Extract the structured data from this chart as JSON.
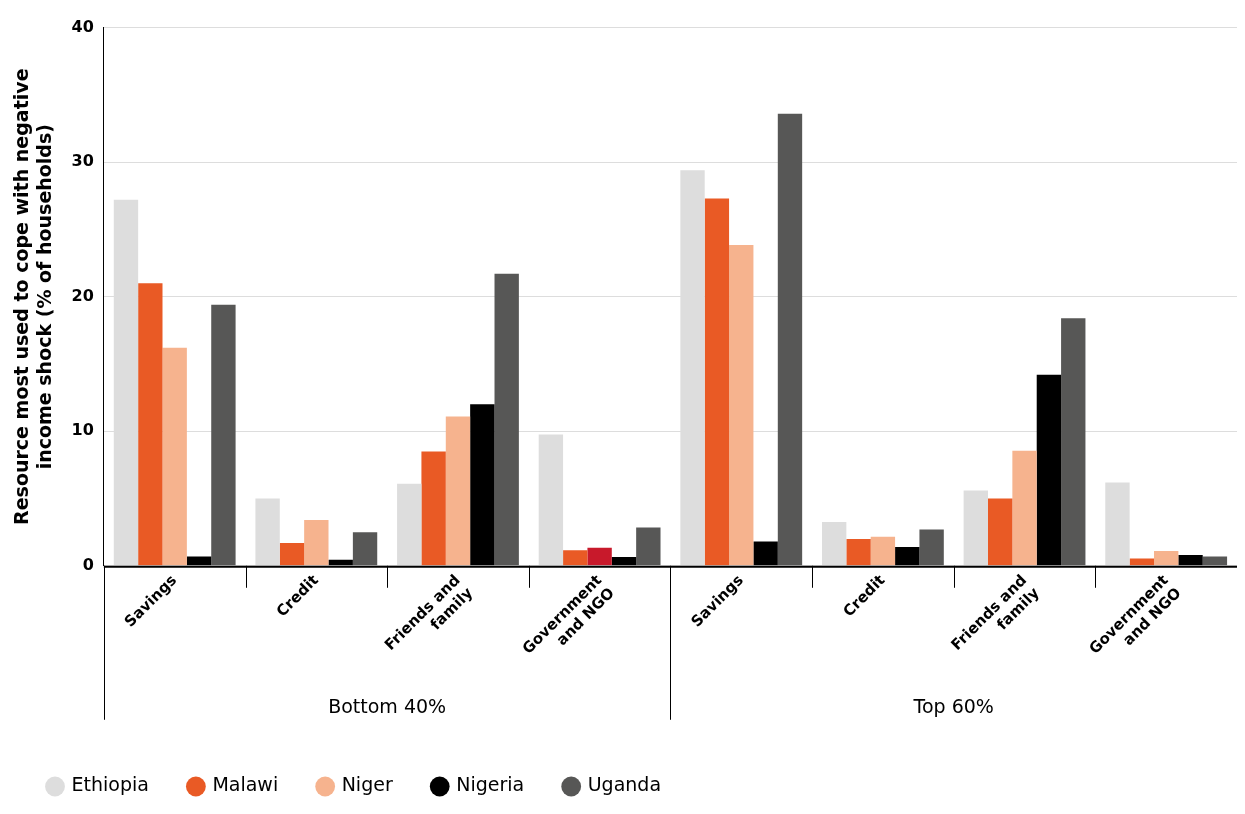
{
  "chart_data": {
    "type": "bar",
    "ylabel": "Resource most used to cope with negative income shock (% of households)",
    "categories": [
      "Savings",
      "Credit",
      "Friends and family",
      "Government and NGO",
      "Savings",
      "Credit",
      "Friends and family",
      "Government and NGO"
    ],
    "annotations": [
      "Bottom 40%",
      "Top 60%"
    ],
    "series": [
      {
        "name": "Ethiopia",
        "color": "#dddddd",
        "values": [
          27.2,
          5.0,
          6.1,
          9.75,
          29.4,
          3.25,
          5.6,
          6.2
        ]
      },
      {
        "name": "Malawi",
        "color": "#e95a25",
        "values": [
          21.0,
          1.7,
          8.5,
          1.15,
          27.3,
          2.0,
          5.0,
          0.55
        ]
      },
      {
        "name": "Niger",
        "color": "#f6b38e",
        "colors": [
          "#f6b38e",
          "#f6b38e",
          "#f6b38e",
          "#c8192b",
          "#f6b38e",
          "#f6b38e",
          "#f6b38e",
          "#f6b38e"
        ],
        "values": [
          16.2,
          3.4,
          11.1,
          1.35,
          23.85,
          2.15,
          8.55,
          1.1
        ]
      },
      {
        "name": "Nigeria",
        "color": "#000000",
        "values": [
          0.7,
          0.45,
          12.0,
          0.65,
          1.8,
          1.4,
          14.2,
          0.8
        ]
      },
      {
        "name": "Uganda",
        "color": "#575756",
        "values": [
          19.4,
          2.5,
          21.7,
          2.85,
          33.6,
          2.7,
          18.4,
          0.7
        ]
      }
    ],
    "ylim": [
      0,
      40
    ],
    "yticks": [
      0,
      10,
      20,
      30,
      40
    ],
    "grid": "y",
    "legend": "bottom left"
  }
}
